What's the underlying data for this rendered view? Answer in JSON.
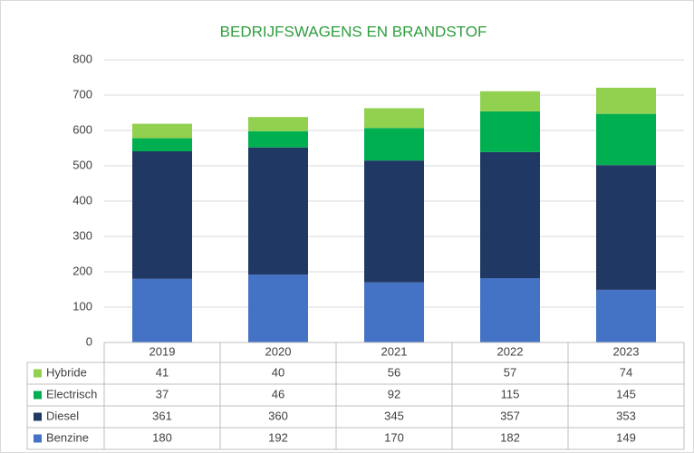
{
  "chart_data": {
    "type": "stacked_bar",
    "title": "BEDRIJFSWAGENS EN BRANDSTOF",
    "categories": [
      "2019",
      "2020",
      "2021",
      "2022",
      "2023"
    ],
    "series": [
      {
        "name": "Benzine",
        "color": "#4472c4",
        "values": [
          180,
          192,
          170,
          182,
          149
        ]
      },
      {
        "name": "Diesel",
        "color": "#203864",
        "values": [
          361,
          360,
          345,
          357,
          353
        ]
      },
      {
        "name": "Electrisch",
        "color": "#00b050",
        "values": [
          37,
          46,
          92,
          115,
          145
        ]
      },
      {
        "name": "Hybride",
        "color": "#92d050",
        "values": [
          41,
          40,
          56,
          57,
          74
        ]
      }
    ],
    "ylim": [
      0,
      800
    ],
    "yticks": [
      0,
      100,
      200,
      300,
      400,
      500,
      600,
      700,
      800
    ],
    "grid": true,
    "data_table": true
  }
}
